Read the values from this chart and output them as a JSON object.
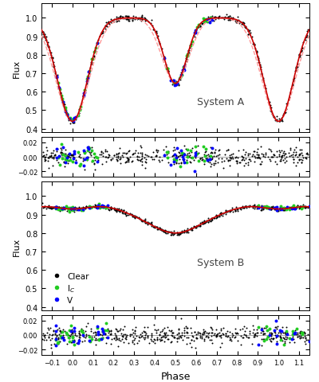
{
  "title": "",
  "xlabel": "Phase",
  "ylabel_flux": "Flux",
  "system_a_label": "System A",
  "system_b_label": "System B",
  "xlim": [
    -0.15,
    1.15
  ],
  "ylim_a": [
    0.38,
    1.08
  ],
  "ylim_b": [
    0.38,
    1.08
  ],
  "ylim_resid": [
    -0.028,
    0.028
  ],
  "yticks_a": [
    0.4,
    0.5,
    0.6,
    0.7,
    0.8,
    0.9,
    1.0
  ],
  "yticks_b": [
    0.4,
    0.5,
    0.6,
    0.7,
    0.8,
    0.9,
    1.0
  ],
  "yticks_resid": [
    -0.02,
    0.0,
    0.02
  ],
  "xticks": [
    -0.1,
    0.0,
    0.1,
    0.2,
    0.3,
    0.4,
    0.5,
    0.6,
    0.7,
    0.8,
    0.9,
    1.0,
    1.1
  ],
  "dot_size_black": 2,
  "dot_size_color": 8,
  "model_color_red": "#cc0000",
  "model_color_dashed": "#ff9999",
  "background": "white",
  "seed": 42
}
